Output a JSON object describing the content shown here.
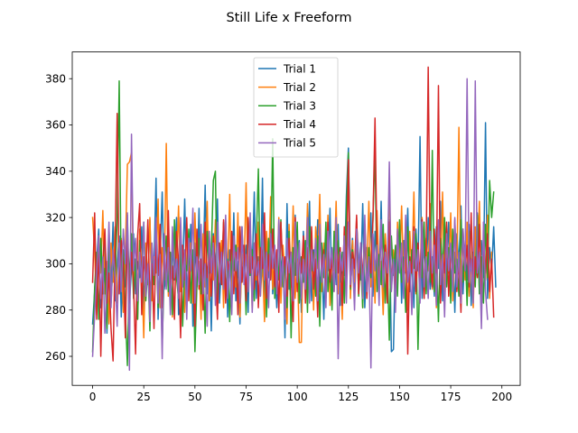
{
  "chart_data": {
    "type": "line",
    "title": "Still Life x Freeform",
    "xlabel": "",
    "ylabel": "",
    "xlim": [
      -9.95,
      208.95
    ],
    "ylim": [
      247.45,
      391.55
    ],
    "x_ticks": [
      0,
      25,
      50,
      75,
      100,
      125,
      150,
      175,
      200
    ],
    "y_ticks": [
      260,
      280,
      300,
      320,
      340,
      360,
      380
    ],
    "grid": false,
    "legend_position": "top-center",
    "x_start": 0,
    "x_step": 1,
    "series": [
      {
        "name": "Trial 1",
        "color": "#1f77b4",
        "values": [
          274,
          288,
          302,
          315,
          281,
          296,
          309,
          270,
          305,
          292,
          318,
          284,
          299,
          312,
          277,
          306,
          290,
          321,
          283,
          298,
          313,
          287,
          301,
          294,
          316,
          280,
          307,
          291,
          319,
          285,
          300,
          337,
          276,
          303,
          331,
          289,
          297,
          311,
          282,
          308,
          293,
          320,
          278,
          304,
          295,
          328,
          286,
          302,
          317,
          273,
          309,
          290,
          324,
          281,
          298,
          334,
          287,
          305,
          271,
          313,
          296,
          328,
          283,
          300,
          292,
          319,
          277,
          306,
          289,
          322,
          284,
          301,
          274,
          316,
          292,
          308,
          279,
          315,
          298,
          331,
          285,
          303,
          290,
          337,
          276,
          311,
          294,
          322,
          287,
          300,
          281,
          318,
          296,
          307,
          268,
          326,
          289,
          304,
          283,
          321,
          295,
          310,
          279,
          314,
          299,
          290,
          327,
          284,
          306,
          292,
          319,
          288,
          301,
          276,
          313,
          297,
          324,
          285,
          309,
          291,
          317,
          282,
          303,
          295,
          329,
          350,
          296,
          311,
          287,
          318,
          302,
          293,
          326,
          281,
          307,
          295,
          322,
          286,
          314,
          300,
          290,
          327,
          283,
          308,
          296,
          319,
          262,
          263,
          305,
          292,
          317,
          283,
          310,
          296,
          324,
          288,
          302,
          281,
          315,
          297,
          355,
          285,
          309,
          294,
          320,
          289,
          303,
          286,
          316,
          298,
          327,
          284,
          311,
          295,
          318,
          290,
          306,
          279,
          313,
          299,
          325,
          287,
          308,
          293,
          317,
          282,
          304,
          296,
          322,
          289,
          310,
          294,
          361,
          285,
          307,
          297,
          316,
          290
        ]
      },
      {
        "name": "Trial 2",
        "color": "#ff7f0e",
        "values": [
          320,
          305,
          278,
          312,
          296,
          323,
          287,
          301,
          274,
          309,
          292,
          316,
          283,
          298,
          311,
          279,
          305,
          343,
          344,
          348,
          289,
          302,
          276,
          315,
          298,
          268,
          309,
          291,
          320,
          284,
          303,
          296,
          328,
          281,
          307,
          293,
          352,
          286,
          300,
          277,
          314,
          297,
          325,
          288,
          304,
          279,
          318,
          292,
          309,
          283,
          322,
          296,
          301,
          276,
          313,
          290,
          327,
          284,
          306,
          293,
          319,
          287,
          299,
          310,
          281,
          316,
          295,
          330,
          283,
          307,
          290,
          322,
          277,
          304,
          296,
          335,
          288,
          312,
          280,
          309,
          293,
          318,
          286,
          301,
          275,
          314,
          297,
          329,
          289,
          305,
          291,
          320,
          283,
          308,
          296,
          274,
          317,
          290,
          325,
          285,
          302,
          266,
          266,
          311,
          293,
          326,
          287,
          305,
          280,
          316,
          298,
          330,
          288,
          309,
          294,
          321,
          282,
          306,
          297,
          327,
          287,
          303,
          276,
          314,
          299,
          345,
          285,
          310,
          292,
          320,
          288,
          304,
          281,
          317,
          296,
          327,
          290,
          308,
          283,
          323,
          295,
          301,
          278,
          313,
          297,
          335,
          289,
          306,
          284,
          318,
          298,
          325,
          291,
          302,
          280,
          314,
          296,
          331,
          287,
          307,
          293,
          320,
          285,
          311,
          297,
          326,
          289,
          303,
          281,
          316,
          294,
          331,
          288,
          309,
          296,
          322,
          284,
          305,
          297,
          359,
          290,
          312,
          293,
          318,
          286,
          302,
          281,
          316,
          297,
          327,
          289,
          308,
          293,
          321,
          285,
          305
        ]
      },
      {
        "name": "Trial 3",
        "color": "#2ca02c",
        "values": [
          262,
          290,
          305,
          276,
          311,
          287,
          298,
          272,
          315,
          283,
          301,
          294,
          320,
          379,
          288,
          306,
          279,
          256,
          297,
          313,
          285,
          302,
          276,
          310,
          293,
          318,
          284,
          299,
          271,
          307,
          291,
          315,
          281,
          303,
          265,
          296,
          312,
          288,
          305,
          278,
          319,
          294,
          285,
          309,
          273,
          301,
          297,
          315,
          283,
          306,
          262,
          292,
          311,
          287,
          298,
          270,
          314,
          296,
          305,
          336,
          340,
          283,
          309,
          291,
          318,
          286,
          302,
          275,
          313,
          297,
          308,
          281,
          316,
          292,
          304,
          278,
          320,
          295,
          306,
          284,
          310,
          341,
          289,
          302,
          312,
          277,
          311,
          298,
          354,
          285,
          305,
          293,
          319,
          290,
          301,
          281,
          314,
          268,
          307,
          295,
          318,
          283,
          303,
          292,
          310,
          279,
          316,
          297,
          305,
          286,
          312,
          273,
          309,
          294,
          318,
          288,
          301,
          280,
          314,
          296,
          310,
          292,
          305,
          283,
          322,
          348,
          289,
          306,
          298,
          315,
          286,
          303,
          281,
          317,
          291,
          307,
          294,
          320,
          349,
          288,
          304,
          291,
          317,
          283,
          301,
          267,
          312,
          295,
          308,
          286,
          319,
          292,
          303,
          279,
          316,
          289,
          306,
          298,
          313,
          263,
          300,
          294,
          318,
          287,
          305,
          292,
          349,
          288,
          303,
          275,
          311,
          297,
          320,
          290,
          307,
          283,
          315,
          296,
          302,
          286,
          319,
          292,
          308,
          282,
          314,
          297,
          305,
          290,
          321,
          287,
          303,
          283,
          317,
          294,
          336,
          320,
          331
        ]
      },
      {
        "name": "Trial 4",
        "color": "#d62728",
        "values": [
          292,
          322,
          276,
          309,
          260,
          301,
          315,
          283,
          296,
          272,
          258,
          307,
          365,
          287,
          310,
          299,
          268,
          316,
          284,
          305,
          291,
          261,
          312,
          326,
          278,
          303,
          293,
          319,
          285,
          300,
          272,
          311,
          295,
          317,
          281,
          304,
          290,
          323,
          287,
          299,
          276,
          314,
          301,
          268,
          308,
          293,
          320,
          284,
          306,
          297,
          273,
          315,
          289,
          302,
          280,
          318,
          294,
          304,
          286,
          312,
          297,
          276,
          309,
          291,
          319,
          283,
          301,
          295,
          314,
          287,
          305,
          278,
          316,
          292,
          308,
          284,
          320,
          296,
          303,
          289,
          313,
          281,
          307,
          298,
          322,
          285,
          304,
          293,
          315,
          290,
          306,
          279,
          318,
          297,
          303,
          286,
          311,
          294,
          275,
          320,
          288,
          305,
          296,
          312,
          283,
          307,
          291,
          316,
          289,
          302,
          277,
          314,
          298,
          306,
          285,
          318,
          292,
          303,
          288,
          313,
          296,
          307,
          282,
          316,
          293,
          345,
          290,
          305,
          298,
          321,
          287,
          309,
          293,
          316,
          285,
          303,
          296,
          319,
          363,
          304,
          289,
          315,
          297,
          308,
          283,
          318,
          294,
          301,
          287,
          314,
          297,
          306,
          292,
          320,
          261,
          303,
          296,
          316,
          288,
          309,
          294,
          319,
          285,
          306,
          385,
          301,
          290,
          315,
          296,
          377,
          283,
          304,
          296,
          318,
          286,
          308,
          292,
          319,
          288,
          301,
          279,
          315,
          297,
          308,
          290,
          322,
          287,
          303,
          294,
          317,
          281,
          310,
          296,
          313,
          288,
          302,
          277
        ]
      },
      {
        "name": "Trial 5",
        "color": "#9467bd",
        "values": [
          260,
          278,
          297,
          312,
          285,
          303,
          270,
          292,
          318,
          281,
          306,
          294,
          273,
          309,
          288,
          315,
          300,
          322,
          254,
          356,
          297,
          311,
          284,
          305,
          292,
          318,
          286,
          300,
          275,
          309,
          295,
          320,
          283,
          304,
          259,
          313,
          289,
          307,
          278,
          316,
          294,
          302,
          285,
          320,
          290,
          306,
          276,
          311,
          297,
          324,
          283,
          303,
          291,
          317,
          287,
          300,
          273,
          314,
          296,
          309,
          282,
          318,
          292,
          305,
          289,
          321,
          285,
          301,
          278,
          312,
          297,
          307,
          283,
          316,
          291,
          304,
          288,
          322,
          279,
          309,
          295,
          301,
          286,
          317,
          293,
          305,
          281,
          313,
          298,
          308,
          287,
          319,
          290,
          303,
          276,
          311,
          296,
          305,
          284,
          318,
          292,
          309,
          285,
          302,
          289,
          320,
          283,
          306,
          297,
          311,
          284,
          317,
          292,
          304,
          281,
          314,
          298,
          307,
          288,
          320,
          259,
          305,
          297,
          312,
          283,
          318,
          291,
          302,
          280,
          315,
          296,
          309,
          285,
          321,
          288,
          303,
          255,
          313,
          297,
          308,
          282,
          319,
          290,
          305,
          296,
          344,
          288,
          302,
          279,
          315,
          296,
          309,
          285,
          321,
          292,
          301,
          278,
          314,
          297,
          306,
          283,
          318,
          290,
          303,
          285,
          314,
          296,
          308,
          282,
          319,
          291,
          304,
          277,
          313,
          297,
          309,
          288,
          320,
          290,
          305,
          283,
          315,
          297,
          380,
          292,
          302,
          283,
          379,
          296,
          305,
          272,
          318,
          288,
          276
        ]
      }
    ]
  }
}
